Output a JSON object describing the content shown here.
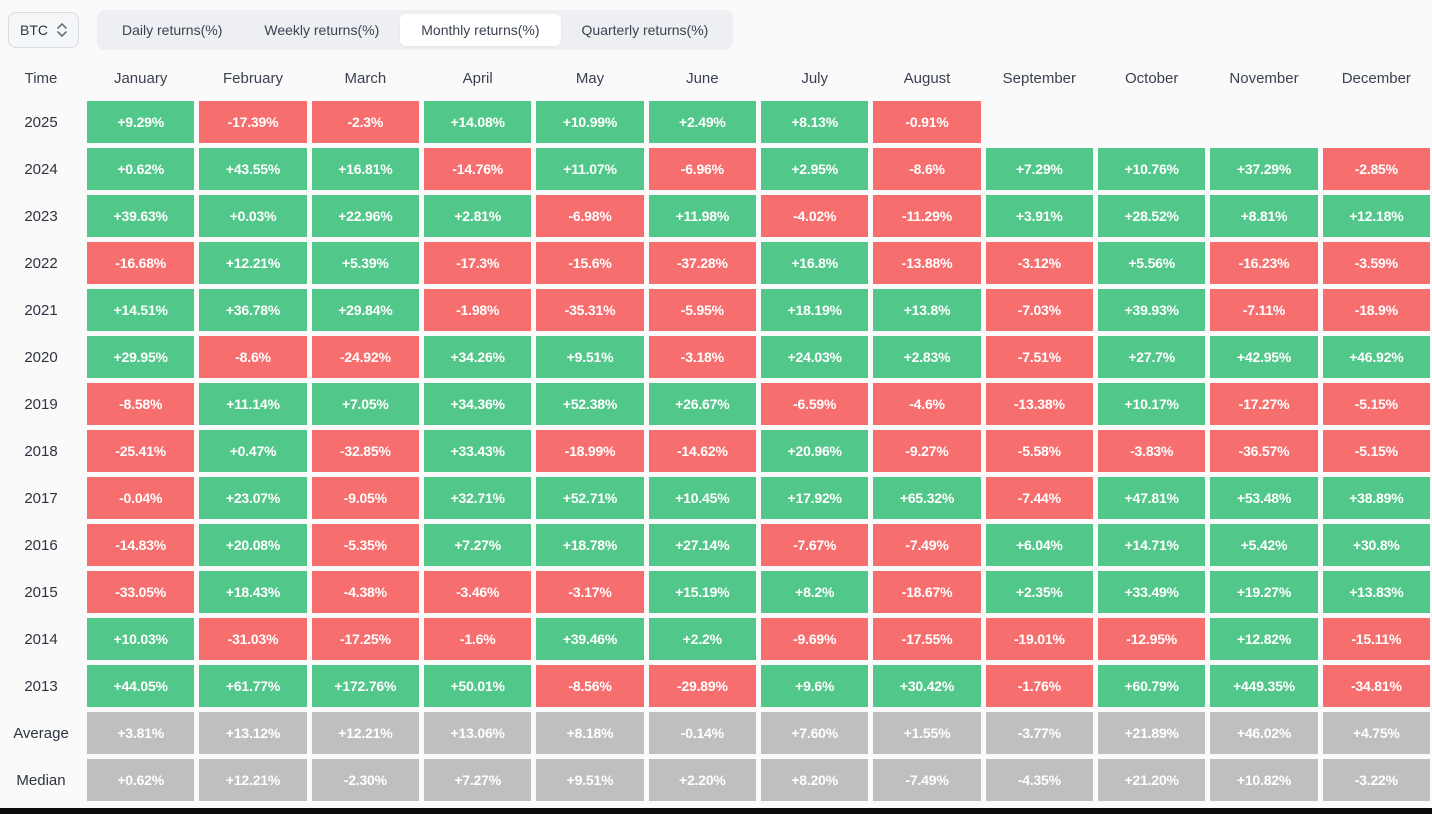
{
  "header": {
    "symbol_selector": {
      "value": "BTC"
    },
    "tabs": [
      {
        "label": "Daily returns(%)",
        "active": false
      },
      {
        "label": "Weekly returns(%)",
        "active": false
      },
      {
        "label": "Monthly returns(%)",
        "active": true
      },
      {
        "label": "Quarterly returns(%)",
        "active": false
      }
    ]
  },
  "colors": {
    "positive": "#52c78a",
    "negative": "#f76e6e",
    "summary": "#bfbfbf"
  },
  "table": {
    "corner_label": "Time",
    "months": [
      "January",
      "February",
      "March",
      "April",
      "May",
      "June",
      "July",
      "August",
      "September",
      "October",
      "November",
      "December"
    ],
    "rows": [
      {
        "label": "2025",
        "values": [
          "+9.29%",
          "-17.39%",
          "-2.3%",
          "+14.08%",
          "+10.99%",
          "+2.49%",
          "+8.13%",
          "-0.91%",
          "",
          "",
          "",
          ""
        ]
      },
      {
        "label": "2024",
        "values": [
          "+0.62%",
          "+43.55%",
          "+16.81%",
          "-14.76%",
          "+11.07%",
          "-6.96%",
          "+2.95%",
          "-8.6%",
          "+7.29%",
          "+10.76%",
          "+37.29%",
          "-2.85%"
        ]
      },
      {
        "label": "2023",
        "values": [
          "+39.63%",
          "+0.03%",
          "+22.96%",
          "+2.81%",
          "-6.98%",
          "+11.98%",
          "-4.02%",
          "-11.29%",
          "+3.91%",
          "+28.52%",
          "+8.81%",
          "+12.18%"
        ]
      },
      {
        "label": "2022",
        "values": [
          "-16.68%",
          "+12.21%",
          "+5.39%",
          "-17.3%",
          "-15.6%",
          "-37.28%",
          "+16.8%",
          "-13.88%",
          "-3.12%",
          "+5.56%",
          "-16.23%",
          "-3.59%"
        ]
      },
      {
        "label": "2021",
        "values": [
          "+14.51%",
          "+36.78%",
          "+29.84%",
          "-1.98%",
          "-35.31%",
          "-5.95%",
          "+18.19%",
          "+13.8%",
          "-7.03%",
          "+39.93%",
          "-7.11%",
          "-18.9%"
        ]
      },
      {
        "label": "2020",
        "values": [
          "+29.95%",
          "-8.6%",
          "-24.92%",
          "+34.26%",
          "+9.51%",
          "-3.18%",
          "+24.03%",
          "+2.83%",
          "-7.51%",
          "+27.7%",
          "+42.95%",
          "+46.92%"
        ]
      },
      {
        "label": "2019",
        "values": [
          "-8.58%",
          "+11.14%",
          "+7.05%",
          "+34.36%",
          "+52.38%",
          "+26.67%",
          "-6.59%",
          "-4.6%",
          "-13.38%",
          "+10.17%",
          "-17.27%",
          "-5.15%"
        ]
      },
      {
        "label": "2018",
        "values": [
          "-25.41%",
          "+0.47%",
          "-32.85%",
          "+33.43%",
          "-18.99%",
          "-14.62%",
          "+20.96%",
          "-9.27%",
          "-5.58%",
          "-3.83%",
          "-36.57%",
          "-5.15%"
        ]
      },
      {
        "label": "2017",
        "values": [
          "-0.04%",
          "+23.07%",
          "-9.05%",
          "+32.71%",
          "+52.71%",
          "+10.45%",
          "+17.92%",
          "+65.32%",
          "-7.44%",
          "+47.81%",
          "+53.48%",
          "+38.89%"
        ]
      },
      {
        "label": "2016",
        "values": [
          "-14.83%",
          "+20.08%",
          "-5.35%",
          "+7.27%",
          "+18.78%",
          "+27.14%",
          "-7.67%",
          "-7.49%",
          "+6.04%",
          "+14.71%",
          "+5.42%",
          "+30.8%"
        ]
      },
      {
        "label": "2015",
        "values": [
          "-33.05%",
          "+18.43%",
          "-4.38%",
          "-3.46%",
          "-3.17%",
          "+15.19%",
          "+8.2%",
          "-18.67%",
          "+2.35%",
          "+33.49%",
          "+19.27%",
          "+13.83%"
        ]
      },
      {
        "label": "2014",
        "values": [
          "+10.03%",
          "-31.03%",
          "-17.25%",
          "-1.6%",
          "+39.46%",
          "+2.2%",
          "-9.69%",
          "-17.55%",
          "-19.01%",
          "-12.95%",
          "+12.82%",
          "-15.11%"
        ]
      },
      {
        "label": "2013",
        "values": [
          "+44.05%",
          "+61.77%",
          "+172.76%",
          "+50.01%",
          "-8.56%",
          "-29.89%",
          "+9.6%",
          "+30.42%",
          "-1.76%",
          "+60.79%",
          "+449.35%",
          "-34.81%"
        ]
      }
    ],
    "summary_rows": [
      {
        "label": "Average",
        "values": [
          "+3.81%",
          "+13.12%",
          "+12.21%",
          "+13.06%",
          "+8.18%",
          "-0.14%",
          "+7.60%",
          "+1.55%",
          "-3.77%",
          "+21.89%",
          "+46.02%",
          "+4.75%"
        ]
      },
      {
        "label": "Median",
        "values": [
          "+0.62%",
          "+12.21%",
          "-2.30%",
          "+7.27%",
          "+9.51%",
          "+2.20%",
          "+8.20%",
          "-7.49%",
          "-4.35%",
          "+21.20%",
          "+10.82%",
          "-3.22%"
        ]
      }
    ]
  }
}
